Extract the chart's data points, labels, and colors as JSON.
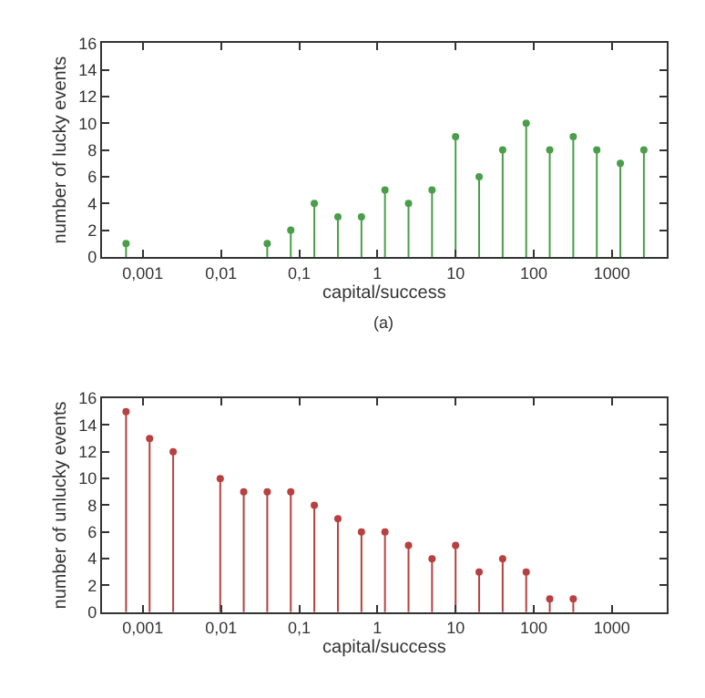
{
  "chart_data": [
    {
      "type": "lollipop",
      "xlabel": "capital/success",
      "ylabel": "number of lucky events",
      "log": "x",
      "marker": "circle",
      "color": "#4a9e4a",
      "x": [
        0.00061,
        0.039,
        0.078,
        0.156,
        0.3125,
        0.625,
        1.25,
        2.5,
        5,
        10,
        20,
        40,
        80,
        160,
        320,
        640,
        1280,
        2560
      ],
      "values": [
        1,
        1,
        2,
        4,
        3,
        3,
        5,
        4,
        5,
        9,
        6,
        8,
        10,
        8,
        9,
        8,
        7,
        8
      ],
      "xlim": [
        0.0003,
        5000
      ],
      "xticks": [
        {
          "value": 0.001,
          "label": "0,001"
        },
        {
          "value": 0.01,
          "label": "0,01"
        },
        {
          "value": 0.1,
          "label": "0,1"
        },
        1,
        10,
        100,
        1000
      ],
      "ylim": [
        0,
        16
      ],
      "yticks": [
        0,
        2,
        4,
        6,
        8,
        10,
        12,
        14,
        16
      ],
      "annotations": [
        "(a)"
      ]
    },
    {
      "type": "lollipop",
      "xlabel": "capital/success",
      "ylabel": "number of unlucky events",
      "log": "x",
      "marker": "circle",
      "color": "#b84040",
      "x": [
        0.00061,
        0.00122,
        0.00244,
        0.00977,
        0.0195,
        0.039,
        0.078,
        0.156,
        0.3125,
        0.625,
        1.25,
        2.5,
        5,
        10,
        20,
        40,
        80,
        160,
        320
      ],
      "values": [
        15,
        13,
        12,
        10,
        9,
        9,
        9,
        8,
        7,
        6,
        6,
        5,
        4,
        5,
        3,
        4,
        3,
        1,
        1
      ],
      "xlim": [
        0.0003,
        5000
      ],
      "xticks": [
        {
          "value": 0.001,
          "label": "0,001"
        },
        {
          "value": 0.01,
          "label": "0,01"
        },
        {
          "value": 0.1,
          "label": "0,1"
        },
        1,
        10,
        100,
        1000
      ],
      "ylim": [
        0,
        16
      ],
      "yticks": [
        0,
        2,
        4,
        6,
        8,
        10,
        12,
        14,
        16
      ]
    }
  ]
}
